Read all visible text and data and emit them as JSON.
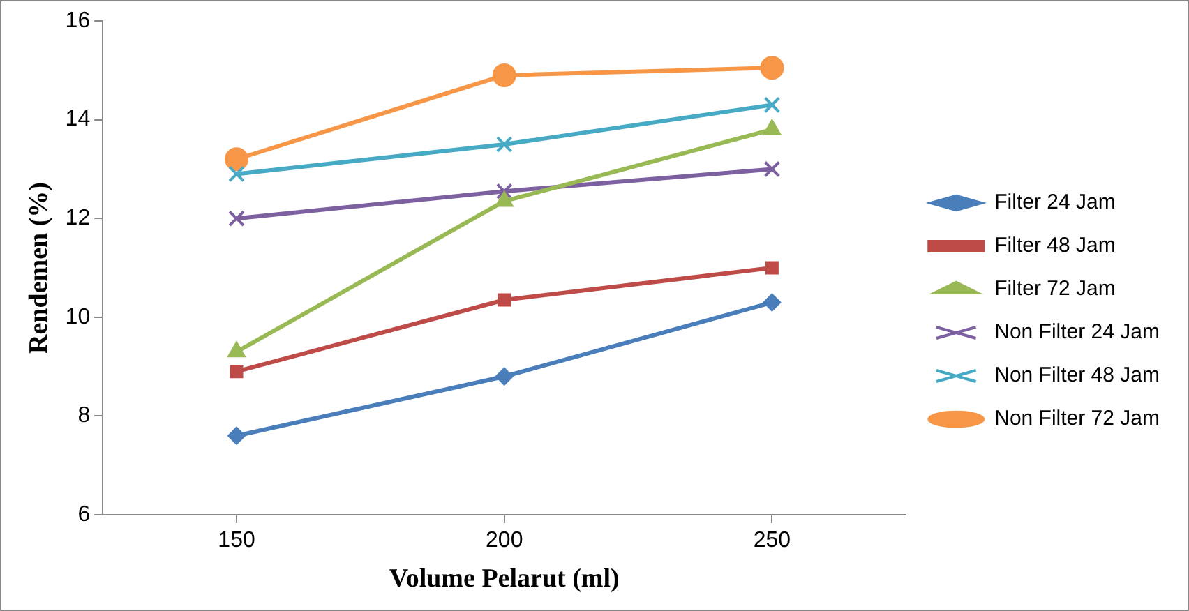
{
  "chart_data": {
    "type": "line",
    "xlabel": "Volume Pelarut (ml)",
    "ylabel": "Rendemen (%)",
    "categories": [
      "150",
      "200",
      "250"
    ],
    "ylim": [
      6,
      16
    ],
    "yticks": [
      6,
      8,
      10,
      12,
      14,
      16
    ],
    "grid": false,
    "legend": "right",
    "line_style": "solid",
    "series": [
      {
        "name": "Filter 24 Jam",
        "color": "#4a7ebb",
        "marker": "diamond",
        "values": [
          7.6,
          8.8,
          10.3
        ]
      },
      {
        "name": "Filter 48 Jam",
        "color": "#be4b48",
        "marker": "square",
        "values": [
          8.9,
          10.35,
          11.0
        ]
      },
      {
        "name": "Filter 72 Jam",
        "color": "#98b954",
        "marker": "triangle",
        "values": [
          9.3,
          12.35,
          13.8
        ]
      },
      {
        "name": "Non Filter 24 Jam",
        "color": "#7d60a0",
        "marker": "cross",
        "values": [
          12.0,
          12.55,
          13.0
        ]
      },
      {
        "name": "Non Filter 48 Jam",
        "color": "#46aac5",
        "marker": "cross",
        "values": [
          12.9,
          13.5,
          14.3
        ]
      },
      {
        "name": "Non Filter 72 Jam",
        "color": "#f79646",
        "marker": "circle",
        "values": [
          13.2,
          14.9,
          15.05
        ]
      }
    ]
  }
}
